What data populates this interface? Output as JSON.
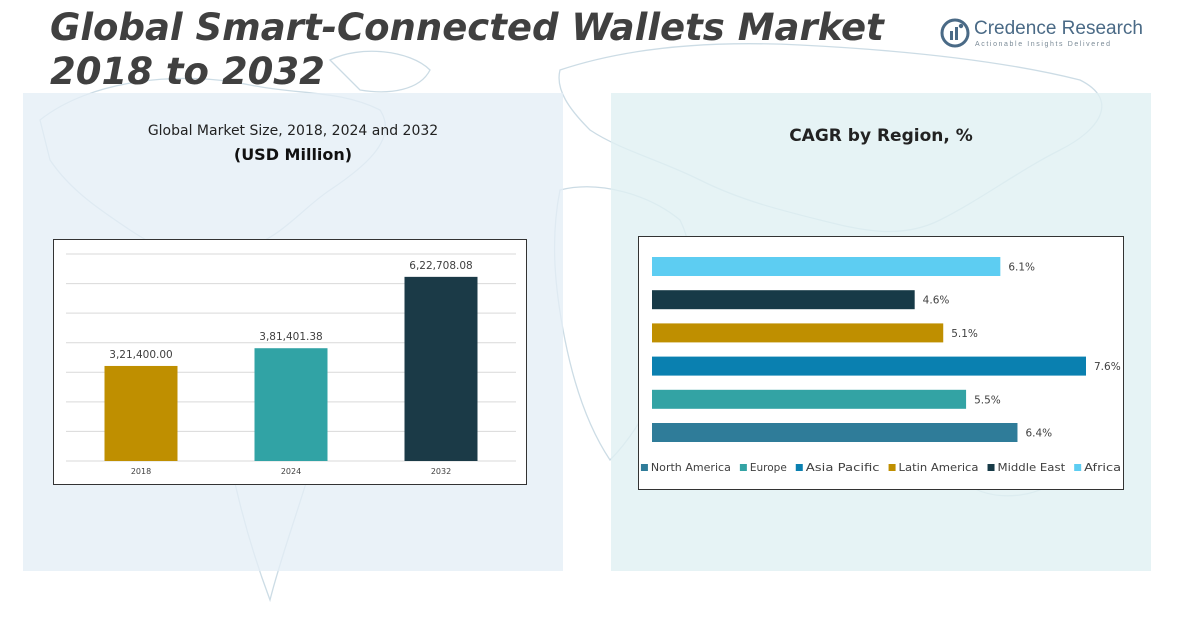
{
  "header": {
    "title": "Global Smart-Connected Wallets Market 2018 to 2032"
  },
  "logo": {
    "name": "Credence Research",
    "tagline": "Actionable Insights Delivered",
    "icon": "credence-logo-icon"
  },
  "left_panel": {
    "subtitle": "Global Market Size, 2018, 2024 and 2032",
    "unit": "(USD Million)"
  },
  "right_panel": {
    "heading": "CAGR by Region, %"
  },
  "colors": {
    "panel_left_bg": "#e4eef6",
    "panel_right_bg": "#e0f0f2",
    "map": "#c6d8e2",
    "bar_2018": "#bf8f00",
    "bar_2024": "#31a3a5",
    "bar_2032": "#1b3a47"
  },
  "chart_data": [
    {
      "type": "bar",
      "categories": [
        "2018",
        "2024",
        "2032"
      ],
      "values": [
        321400.0,
        381401.38,
        622708.08
      ],
      "value_labels": [
        "3,21,400.00",
        "3,81,401.38",
        "6,22,708.08"
      ],
      "colors": [
        "#bf8f00",
        "#31a3a5",
        "#1b3a47"
      ],
      "title": "Global Market Size, 2018, 2024 and 2032",
      "ylabel": "(USD Million)",
      "ylim": [
        0,
        700000
      ],
      "grid": true
    },
    {
      "type": "bar",
      "orientation": "horizontal",
      "title": "CAGR by Region, %",
      "series": [
        {
          "name": "North America",
          "value": 6.4,
          "label": "6.4%",
          "color": "#2f7c99"
        },
        {
          "name": "Europe",
          "value": 5.5,
          "label": "5.5%",
          "color": "#33a3a4"
        },
        {
          "name": "Asia Pacific",
          "value": 7.6,
          "label": "7.6%",
          "color": "#0a80b0"
        },
        {
          "name": "Latin America",
          "value": 5.1,
          "label": "5.1%",
          "color": "#bf8f00"
        },
        {
          "name": "Middle East",
          "value": 4.6,
          "label": "4.6%",
          "color": "#173a47"
        },
        {
          "name": "Africa",
          "value": 6.1,
          "label": "6.1%",
          "color": "#5dcdf2"
        }
      ],
      "xlim": [
        0,
        7.6
      ],
      "legend": "bottom",
      "grid": false
    }
  ]
}
